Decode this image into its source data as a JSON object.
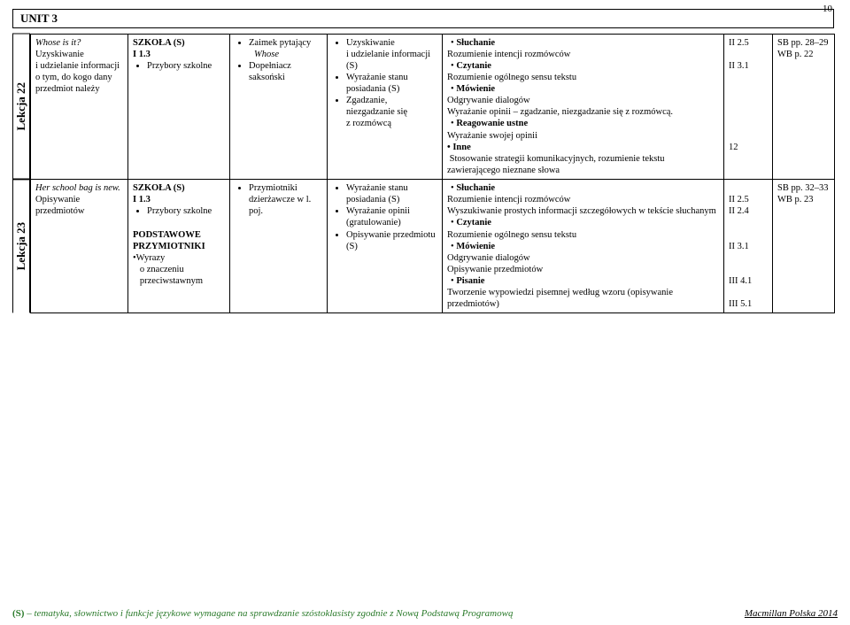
{
  "page_number": "10",
  "unit_title": "UNIT 3",
  "rows": [
    {
      "side_label": "Lekcja 22",
      "c1_line1_italic": "Whose is it?",
      "c1_rest": "Uzyskiwanie i udzielanie informacji o tym, do kogo dany przedmiot należy",
      "c2_line1_bold": "SZKOŁA (S)",
      "c2_line2_bold": "I  1.3",
      "c2_bullet1": "Przybory szkolne",
      "c2_extra": [],
      "c3_bullets": [
        {
          "head": "Zaimek pytający",
          "sub_italic": "Whose"
        },
        {
          "head": "Dopełniacz saksoński",
          "sub_italic": ""
        }
      ],
      "c4_bullets": [
        "Uzyskiwanie i udzielanie informacji (S)",
        "Wyrażanie stanu posiadania (S)",
        "Zgadzanie, niezgadzanie się z rozmówcą"
      ],
      "c5_html": "<span class='center-dot'><span class='bold'>Słuchanie</span></span>Rozumienie intencji rozmówców<br><span class='center-dot'><span class='bold'>Czytanie</span></span>Rozumienie ogólnego sensu tekstu<br><span class='center-dot'><span class='bold'>Mówienie</span></span>Odgrywanie dialogów<br>Wyrażanie opinii – zgadzanie, niezgadzanie się z rozmówcą.<br><span class='center-dot'><span class='bold'>Reagowanie ustne</span></span>Wyrażanie swojej opinii<br><span class='dot bold'>Inne</span><br> Stosowanie strategii komunikacyjnych, rozumienie tekstu zawierającego nieznane słowa",
      "c6_lines": [
        "II  2.5",
        "",
        "II  3.1",
        "",
        "",
        "",
        "",
        "",
        "",
        "12"
      ],
      "c7_line1": "SB pp. 28–29",
      "c7_line2": "WB p. 22"
    },
    {
      "side_label": "Lekcja 23",
      "c1_line1_italic": "Her school bag is new.",
      "c1_rest": "Opisywanie przedmiotów",
      "c2_line1_bold": "SZKOŁA (S)",
      "c2_line2_bold": "I  1.3",
      "c2_bullet1": "Przybory szkolne",
      "c2_extra": [
        {
          "bold": true,
          "text": "PODSTAWOWE PRZYMIOTNIKI"
        },
        {
          "bold": false,
          "text": "•Wyrazy"
        },
        {
          "bold": false,
          "text": "   o znaczeniu"
        },
        {
          "bold": false,
          "text": "   przeciwstawnym"
        }
      ],
      "c3_bullets": [
        {
          "head": "Przymiotniki dzierżawcze w l. poj.",
          "sub_italic": ""
        }
      ],
      "c4_bullets": [
        "Wyrażanie stanu posiadania (S)",
        "Wyrażanie opinii (gratulowanie)",
        "Opisywanie przedmiotu (S)"
      ],
      "c5_html": "<span class='center-dot'><span class='bold'>Słuchanie</span></span>Rozumienie intencji rozmówców<br>Wyszukiwanie prostych informacji szczegółowych w tekście słuchanym<br><span class='center-dot'><span class='bold'>Czytanie</span></span>Rozumienie ogólnego sensu  tekstu<br><span class='center-dot'><span class='bold'>Mówienie</span></span>Odgrywanie dialogów<br>Opisywanie przedmiotów<br><span class='center-dot'><span class='bold'>Pisanie</span></span>Tworzenie wypowiedzi pisemnej według wzoru (opisywanie przedmiotów)",
      "c6_lines": [
        "",
        "II  2.5",
        "II  2.4",
        "",
        "",
        "II  3.1",
        "",
        "",
        "III  4.1",
        "",
        "III  5.1"
      ],
      "c7_line1": "SB pp. 32–33",
      "c7_line2": "WB p. 23"
    }
  ],
  "footer_left_prefix_bold": "(S)",
  "footer_left_rest": " – tematyka, słownictwo i funkcje językowe wymagane na sprawdzanie szóstoklasisty zgodnie z Nową Podstawą Programową",
  "footer_right": "Macmillan Polska 2014"
}
